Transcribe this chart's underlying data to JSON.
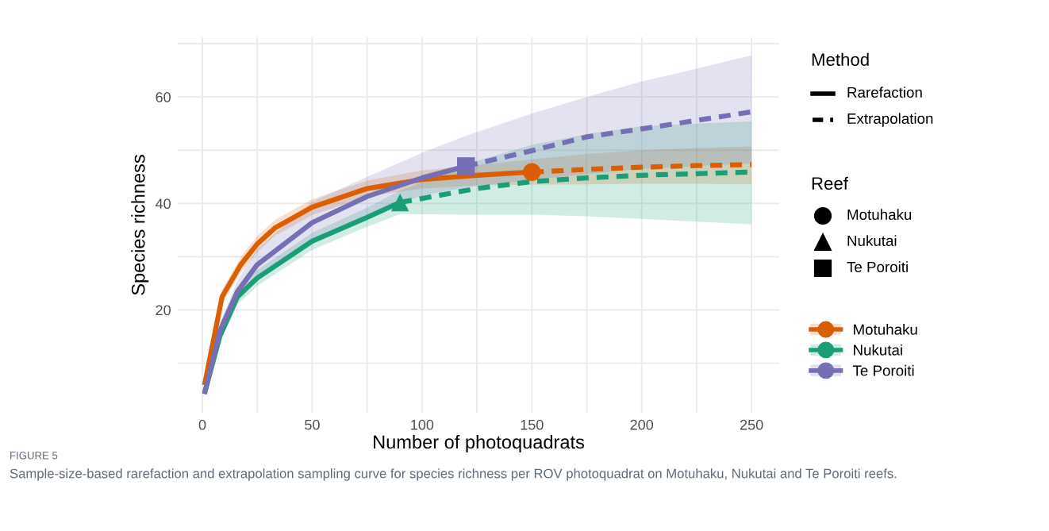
{
  "chart_data": {
    "type": "line",
    "xlabel": "Number of photoquadrats",
    "ylabel": "Species richness",
    "xlim": [
      -11.2,
      262.6
    ],
    "ylim": [
      0.7,
      71.2
    ],
    "xticks": [
      0,
      {
        "value": 25,
        "label": null
      },
      50,
      {
        "value": 75,
        "label": null
      },
      100,
      {
        "value": 125,
        "label": null
      },
      150,
      {
        "value": 175,
        "label": null
      },
      200,
      {
        "value": 225,
        "label": null
      },
      250
    ],
    "yticks": [
      {
        "value": 10,
        "label": null
      },
      20,
      {
        "value": 30,
        "label": null
      },
      40,
      {
        "value": 50,
        "label": null
      },
      60,
      {
        "value": 70,
        "label": null
      }
    ],
    "grid": true,
    "legend": "right",
    "series": [
      {
        "name": "Motuhaku",
        "color": "#d95f02",
        "line_style": "solid",
        "x": [
          1,
          9,
          17.5,
          25,
          33,
          50,
          75,
          100,
          125,
          150
        ],
        "values": [
          5.9,
          22.5,
          28.5,
          32.4,
          35.4,
          39.3,
          42.8,
          44.5,
          45.3,
          45.9
        ],
        "lower": [
          5.4,
          21.2,
          27.0,
          30.9,
          33.9,
          37.8,
          41.3,
          42.8,
          43.4,
          43.5
        ],
        "upper": [
          6.4,
          23.8,
          30.0,
          33.9,
          36.9,
          40.8,
          44.3,
          46.2,
          47.2,
          48.3
        ]
      },
      {
        "color": "#d95f02",
        "line_style": "dashed",
        "x": [
          150,
          175,
          200,
          225,
          250
        ],
        "values": [
          45.9,
          46.4,
          46.8,
          47.1,
          47.3
        ],
        "lower": [
          43.5,
          43.6,
          43.7,
          43.7,
          43.6
        ],
        "upper": [
          48.3,
          49.3,
          50.0,
          50.4,
          50.7
        ]
      },
      {
        "name": "Nukutai",
        "color": "#1b9e77",
        "line_style": "solid",
        "x": [
          1,
          8,
          16,
          25,
          50,
          75,
          90
        ],
        "values": [
          4.4,
          15.1,
          22.5,
          26.0,
          32.9,
          37.4,
          40.2
        ],
        "lower": [
          3.8,
          14.0,
          21.0,
          24.5,
          31.3,
          35.6,
          38.0
        ],
        "upper": [
          5.0,
          16.2,
          24.0,
          27.5,
          34.5,
          39.2,
          42.4
        ]
      },
      {
        "color": "#1b9e77",
        "line_style": "dashed",
        "x": [
          90,
          125,
          150,
          175,
          200,
          225,
          250
        ],
        "values": [
          40.2,
          42.8,
          44.1,
          44.8,
          45.3,
          45.6,
          45.9
        ],
        "lower": [
          38.0,
          37.9,
          37.9,
          37.6,
          37.1,
          36.6,
          36.1
        ],
        "upper": [
          42.4,
          48.0,
          51.0,
          53.0,
          54.5,
          55.0,
          55.4
        ]
      },
      {
        "name": "Te Poroiti",
        "color": "#7570b3",
        "line_style": "solid",
        "x": [
          1,
          8,
          16,
          25,
          50,
          75,
          100,
          120
        ],
        "values": [
          4.2,
          16.1,
          23.5,
          28.5,
          36.4,
          41.3,
          44.8,
          47.0
        ],
        "lower": [
          3.6,
          14.5,
          21.5,
          25.5,
          32.5,
          37.5,
          41.5,
          43.0
        ],
        "upper": [
          4.8,
          17.5,
          25.5,
          31.5,
          40.3,
          45.0,
          49.5,
          52.7
        ]
      },
      {
        "color": "#7570b3",
        "line_style": "dashed",
        "x": [
          120,
          150,
          175,
          200,
          225,
          250
        ],
        "values": [
          47.0,
          49.9,
          52.5,
          54.0,
          55.6,
          57.2
        ],
        "lower": [
          43.0,
          44.5,
          45.5,
          46.5,
          47.0,
          47.5
        ],
        "upper": [
          52.7,
          56.9,
          60.0,
          62.9,
          65.3,
          67.8
        ]
      },
      {
        "type": "scatter",
        "color": "#d95f02",
        "marker": "circle",
        "x": [
          150
        ],
        "values": [
          45.9
        ]
      },
      {
        "type": "scatter",
        "color": "#1b9e77",
        "marker": "triangle",
        "x": [
          90
        ],
        "values": [
          40.2
        ]
      },
      {
        "type": "scatter",
        "color": "#7570b3",
        "marker": "square",
        "x": [
          120
        ],
        "values": [
          47.0
        ]
      }
    ],
    "annotations": [
      "Method",
      "Rarefaction",
      "Extrapolation",
      "Reef",
      "Motuhaku",
      "Nukutai",
      "Te Poroiti",
      "FIGURE 5",
      "Sample-size-based rarefaction and extrapolation sampling curve for species richness per ROV photoquadrat on Motuhaku, Nukutai and Te Poroiti reefs."
    ]
  }
}
